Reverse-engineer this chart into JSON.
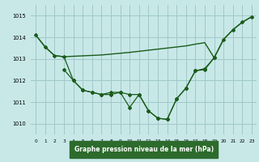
{
  "background_color": "#c8e8e8",
  "grid_color": "#a0c8c8",
  "line_color": "#1a5c1a",
  "xlabel_bg": "#2d6b2d",
  "title": "Graphe pression niveau de la mer (hPa)",
  "ylim": [
    1009.5,
    1015.5
  ],
  "xlim": [
    -0.5,
    23.5
  ],
  "yticks": [
    1010,
    1011,
    1012,
    1013,
    1014,
    1015
  ],
  "xticks": [
    0,
    1,
    2,
    3,
    4,
    5,
    6,
    7,
    8,
    9,
    10,
    11,
    12,
    13,
    14,
    15,
    16,
    17,
    18,
    19,
    20,
    21,
    22,
    23
  ],
  "line1_x": [
    0,
    1,
    2,
    3,
    4,
    5,
    6,
    7,
    8,
    9,
    10,
    11,
    12,
    13,
    14,
    15,
    16,
    17,
    18,
    19,
    20,
    21,
    22,
    23
  ],
  "line1_y": [
    1014.1,
    1013.55,
    1013.15,
    1013.1,
    1013.12,
    1013.14,
    1013.16,
    1013.18,
    1013.22,
    1013.26,
    1013.3,
    1013.35,
    1013.4,
    1013.45,
    1013.5,
    1013.55,
    1013.6,
    1013.68,
    1013.75,
    1013.05,
    1013.9,
    1014.35,
    1014.7,
    1014.95
  ],
  "line2_x": [
    0,
    1,
    2,
    3,
    4,
    5,
    6,
    7,
    8,
    9,
    10,
    11,
    12,
    13,
    14,
    15,
    16,
    17,
    18,
    19,
    20,
    21,
    22,
    23
  ],
  "line2_y": [
    1014.1,
    1013.55,
    1013.15,
    1013.1,
    1012.0,
    1011.55,
    1011.45,
    1011.35,
    1011.45,
    1011.45,
    1010.75,
    1011.35,
    1010.6,
    1010.25,
    1010.2,
    1011.15,
    1011.65,
    1012.45,
    1012.5,
    1013.05,
    1013.9,
    1014.35,
    1014.7,
    1014.95
  ],
  "line3_x": [
    3,
    4,
    5,
    6,
    7,
    8,
    9,
    10,
    11,
    12,
    13,
    14,
    15,
    16,
    17,
    18,
    19
  ],
  "line3_y": [
    1012.5,
    1012.0,
    1011.55,
    1011.45,
    1011.35,
    1011.35,
    1011.45,
    1011.35,
    1011.35,
    1010.6,
    1010.25,
    1010.2,
    1011.15,
    1011.65,
    1012.45,
    1012.55,
    1013.05
  ]
}
